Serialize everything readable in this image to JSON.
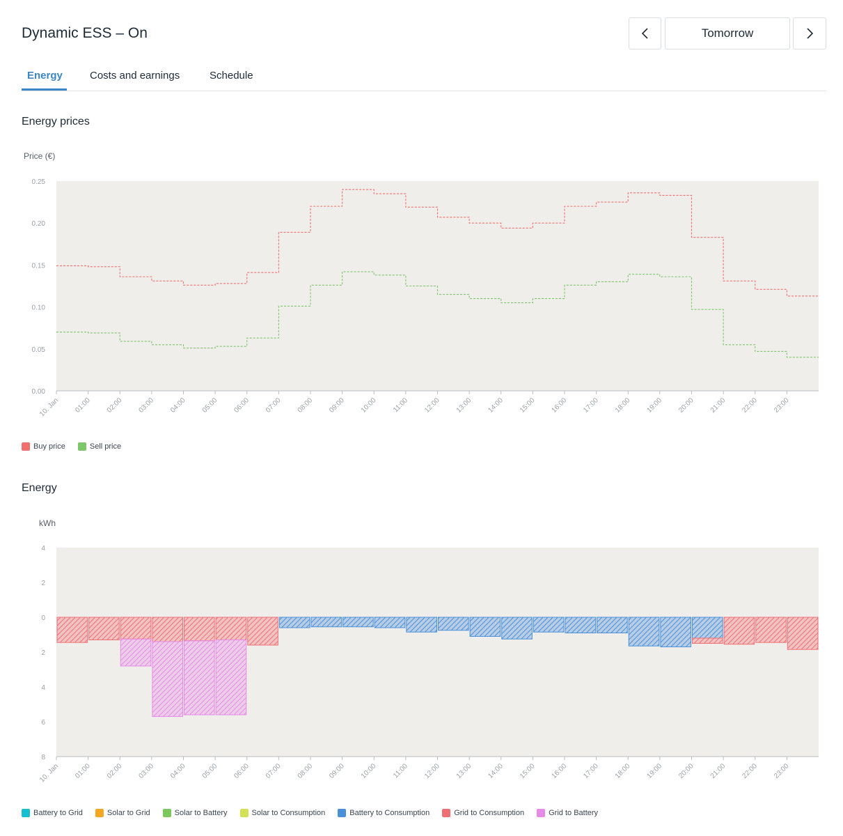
{
  "header": {
    "title": "Dynamic ESS – On",
    "period_label": "Tomorrow",
    "prev_icon": "chevron-left-icon",
    "next_icon": "chevron-right-icon"
  },
  "tabs": [
    {
      "label": "Energy",
      "active": true
    },
    {
      "label": "Costs and earnings",
      "active": false
    },
    {
      "label": "Schedule",
      "active": false
    }
  ],
  "colors": {
    "accent": "#3b86c6",
    "plot_background": "#f0eeeb",
    "buy_price": "#f07070",
    "sell_price": "#7cc66b",
    "battery_to_grid": "#17becf",
    "solar_to_grid": "#f5a623",
    "solar_to_battery": "#7dc85e",
    "solar_to_consumption": "#d4e157",
    "battery_to_consumption": "#4a90d9",
    "grid_to_consumption": "#ef7074",
    "grid_to_battery": "#e68be6"
  },
  "price_chart": {
    "section_title": "Energy prices",
    "ylabel": "Price (€)"
  },
  "energy_chart": {
    "section_title": "Energy",
    "ylabel": "kWh"
  },
  "chart_data": [
    {
      "type": "line",
      "step": true,
      "categories": [
        "10. Jan",
        "01:00",
        "02:00",
        "03:00",
        "04:00",
        "05:00",
        "06:00",
        "07:00",
        "08:00",
        "09:00",
        "10:00",
        "11:00",
        "12:00",
        "13:00",
        "14:00",
        "15:00",
        "16:00",
        "17:00",
        "18:00",
        "19:00",
        "20:00",
        "21:00",
        "22:00",
        "23:00"
      ],
      "ylim": [
        0,
        0.25
      ],
      "yticks": [
        "0.00",
        "0.05",
        "0.10",
        "0.15",
        "0.20",
        "0.25"
      ],
      "grid": false,
      "legend_position": "bottom-left",
      "series": [
        {
          "name": "Buy price",
          "color": "#f07070",
          "values": [
            0.149,
            0.148,
            0.136,
            0.131,
            0.126,
            0.128,
            0.141,
            0.189,
            0.22,
            0.24,
            0.235,
            0.219,
            0.207,
            0.2,
            0.194,
            0.2,
            0.22,
            0.225,
            0.236,
            0.233,
            0.183,
            0.131,
            0.121,
            0.113
          ]
        },
        {
          "name": "Sell price",
          "color": "#7cc66b",
          "values": [
            0.07,
            0.069,
            0.059,
            0.055,
            0.051,
            0.053,
            0.063,
            0.101,
            0.126,
            0.142,
            0.138,
            0.125,
            0.115,
            0.11,
            0.105,
            0.11,
            0.126,
            0.13,
            0.139,
            0.136,
            0.097,
            0.055,
            0.047,
            0.04
          ]
        }
      ]
    },
    {
      "type": "bar",
      "stacked": true,
      "categories": [
        "10. Jan",
        "01:00",
        "02:00",
        "03:00",
        "04:00",
        "05:00",
        "06:00",
        "07:00",
        "08:00",
        "09:00",
        "10:00",
        "11:00",
        "12:00",
        "13:00",
        "14:00",
        "15:00",
        "16:00",
        "17:00",
        "18:00",
        "19:00",
        "20:00",
        "21:00",
        "22:00",
        "23:00"
      ],
      "ylim": [
        -8,
        4
      ],
      "yticks": [
        {
          "value": 4,
          "label": "4"
        },
        {
          "value": 2,
          "label": "2"
        },
        {
          "value": 0,
          "label": "0"
        },
        {
          "value": -2,
          "label": "2"
        },
        {
          "value": -4,
          "label": "4"
        },
        {
          "value": -6,
          "label": "6"
        },
        {
          "value": -8,
          "label": "8"
        }
      ],
      "grid": false,
      "legend_position": "bottom-left",
      "series": [
        {
          "name": "Battery to Grid",
          "color": "#17becf",
          "values": [
            0,
            0,
            0,
            0,
            0,
            0,
            0,
            0,
            0,
            0,
            0,
            0,
            0,
            0,
            0,
            0,
            0,
            0,
            0,
            0,
            0,
            0,
            0,
            0
          ]
        },
        {
          "name": "Solar to Grid",
          "color": "#f5a623",
          "values": [
            0,
            0,
            0,
            0,
            0,
            0,
            0,
            0,
            0,
            0,
            0,
            0,
            0,
            0,
            0,
            0,
            0,
            0,
            0,
            0,
            0,
            0,
            0,
            0
          ]
        },
        {
          "name": "Solar to Battery",
          "color": "#7dc85e",
          "values": [
            0,
            0,
            0,
            0,
            0,
            0,
            0,
            0,
            0,
            0,
            0,
            0,
            0,
            0,
            0,
            0,
            0,
            0,
            0,
            0,
            0,
            0,
            0,
            0
          ]
        },
        {
          "name": "Solar to Consumption",
          "color": "#d4e157",
          "values": [
            0,
            0,
            0,
            0,
            0,
            0,
            0,
            0,
            0,
            0,
            0,
            0,
            0,
            0,
            0,
            0,
            0,
            0,
            0,
            0,
            0,
            0,
            0,
            0
          ]
        },
        {
          "name": "Battery to Consumption",
          "color": "#4a90d9",
          "values": [
            0,
            0,
            0,
            0,
            0,
            0,
            0,
            -0.6,
            -0.55,
            -0.55,
            -0.6,
            -0.85,
            -0.75,
            -1.1,
            -1.25,
            -0.85,
            -0.9,
            -0.9,
            -1.65,
            -1.7,
            -1.2,
            0,
            0,
            0
          ]
        },
        {
          "name": "Grid to Consumption",
          "color": "#ef7074",
          "values": [
            -1.45,
            -1.3,
            -1.25,
            -1.4,
            -1.35,
            -1.3,
            -1.6,
            0,
            0,
            0,
            0,
            0,
            0,
            0,
            0,
            0,
            0,
            0,
            0,
            0,
            -0.3,
            -1.55,
            -1.45,
            -1.85
          ]
        },
        {
          "name": "Grid to Battery",
          "color": "#e68be6",
          "values": [
            0,
            0,
            -1.55,
            -4.3,
            -4.25,
            -4.3,
            0,
            0,
            0,
            0,
            0,
            0,
            0,
            0,
            0,
            0,
            0,
            0,
            0,
            0,
            0,
            0,
            0,
            0
          ]
        }
      ]
    }
  ]
}
